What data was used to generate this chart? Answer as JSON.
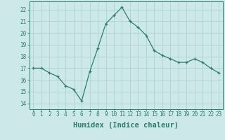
{
  "x": [
    0,
    1,
    2,
    3,
    4,
    5,
    6,
    7,
    8,
    9,
    10,
    11,
    12,
    13,
    14,
    15,
    16,
    17,
    18,
    19,
    20,
    21,
    22,
    23
  ],
  "y": [
    17.0,
    17.0,
    16.6,
    16.3,
    15.5,
    15.2,
    14.2,
    16.7,
    18.7,
    20.8,
    21.5,
    22.2,
    21.0,
    20.5,
    19.8,
    18.5,
    18.1,
    17.8,
    17.5,
    17.5,
    17.8,
    17.5,
    17.0,
    16.6
  ],
  "line_color": "#2d7d6e",
  "marker": "+",
  "bg_color": "#cce8e8",
  "grid_color": "#aacece",
  "xlabel": "Humidex (Indice chaleur)",
  "ylim": [
    13.5,
    22.7
  ],
  "xlim": [
    -0.5,
    23.5
  ],
  "yticks": [
    14,
    15,
    16,
    17,
    18,
    19,
    20,
    21,
    22
  ],
  "xticks": [
    0,
    1,
    2,
    3,
    4,
    5,
    6,
    7,
    8,
    9,
    10,
    11,
    12,
    13,
    14,
    15,
    16,
    17,
    18,
    19,
    20,
    21,
    22,
    23
  ],
  "tick_fontsize": 5.5,
  "xlabel_fontsize": 7.5,
  "tick_color": "#2d7d6e",
  "axis_color": "#2d7d6e",
  "linewidth": 0.9,
  "markersize": 3.5,
  "markeredgewidth": 0.9
}
